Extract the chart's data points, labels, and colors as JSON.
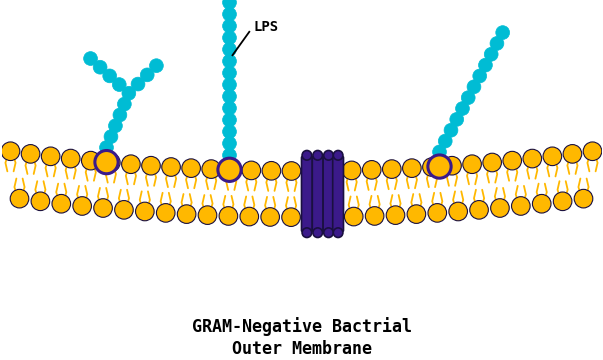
{
  "title_line1": "GRAM-Negative Bactrial",
  "title_line2": "Outer Membrane",
  "title_fontsize": 12,
  "bg_color": "#ffffff",
  "cyan_color": "#00BCD4",
  "yellow_color": "#FFB800",
  "purple_color": "#3B1A8A",
  "outline_color": "#1a1040",
  "lps_label": "LPS",
  "fig_width": 6.03,
  "fig_height": 3.6,
  "dpi": 100,
  "xlim": [
    0,
    10
  ],
  "ylim": [
    0,
    6
  ]
}
